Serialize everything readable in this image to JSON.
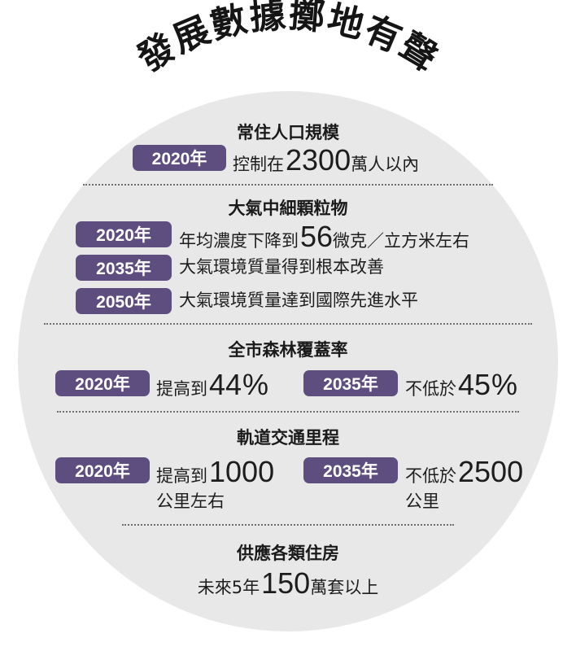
{
  "title": "發展數據擲地有聲",
  "sections": {
    "population": {
      "title": "常住人口規模",
      "year": "2020年",
      "text_before": "控制在",
      "number": "2300",
      "text_after": "萬人以內"
    },
    "pm25": {
      "title": "大氣中細顆粒物",
      "rows": [
        {
          "year": "2020年",
          "text_before": "年均濃度下降到",
          "number": "56",
          "text_after": "微克／立方米左右"
        },
        {
          "year": "2035年",
          "text": "大氣環境質量得到根本改善"
        },
        {
          "year": "2050年",
          "text": "大氣環境質量達到國際先進水平"
        }
      ]
    },
    "forest": {
      "title": "全市森林覆蓋率",
      "left": {
        "year": "2020年",
        "text_before": "提高到",
        "number": "44",
        "unit": "%"
      },
      "right": {
        "year": "2035年",
        "text_before": "不低於",
        "number": "45",
        "unit": "%"
      }
    },
    "rail": {
      "title": "軌道交通里程",
      "left": {
        "year": "2020年",
        "text_before": "提高到",
        "number": "1000",
        "text_below": "公里左右"
      },
      "right": {
        "year": "2035年",
        "text_before": "不低於",
        "number": "2500",
        "text_below": "公里"
      }
    },
    "housing": {
      "title": "供應各類住房",
      "text_before": "未來5年",
      "number": "150",
      "text_after": "萬套以上"
    }
  },
  "colors": {
    "badge": "#5e4e7f",
    "circle": "#e8e8e8",
    "separator": "#6f6f6f"
  }
}
